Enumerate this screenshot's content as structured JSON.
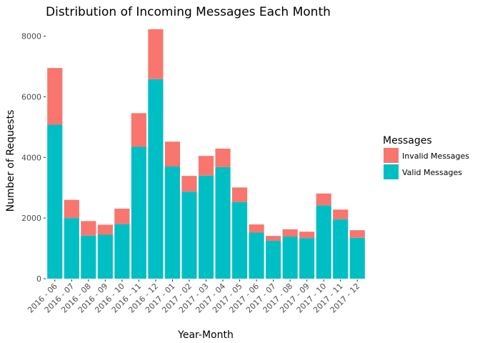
{
  "chart_data": {
    "type": "bar",
    "stacked": true,
    "title": "Distribution of Incoming Messages Each Month",
    "xlabel": "Year-Month",
    "ylabel": "Number of Requests",
    "ylim": [
      0,
      8250
    ],
    "yticks": [
      0,
      2000,
      4000,
      6000,
      8000
    ],
    "grid": false,
    "legend_position": "right",
    "legend_title": "Messages",
    "categories": [
      "2016 - 06",
      "2016 - 07",
      "2016 - 08",
      "2016 - 09",
      "2016 - 10",
      "2016 - 11",
      "2016 - 12",
      "2017 - 01",
      "2017 - 02",
      "2017 - 03",
      "2017 - 04",
      "2017 - 05",
      "2017 - 06",
      "2017 - 07",
      "2017 - 08",
      "2017 - 09",
      "2017 - 10",
      "2017 - 11",
      "2017 - 12"
    ],
    "series": [
      {
        "name": "Valid Messages",
        "color": "#00BFC4",
        "values": [
          5080,
          2000,
          1420,
          1450,
          1800,
          4350,
          6580,
          3700,
          2870,
          3400,
          3680,
          2530,
          1520,
          1250,
          1390,
          1340,
          2420,
          1960,
          1350
        ]
      },
      {
        "name": "Invalid Messages",
        "color": "#F8766D",
        "values": [
          1870,
          600,
          480,
          330,
          510,
          1110,
          1650,
          820,
          520,
          650,
          610,
          480,
          270,
          160,
          240,
          210,
          390,
          320,
          250
        ]
      }
    ],
    "legend_order": [
      "Invalid Messages",
      "Valid Messages"
    ]
  }
}
